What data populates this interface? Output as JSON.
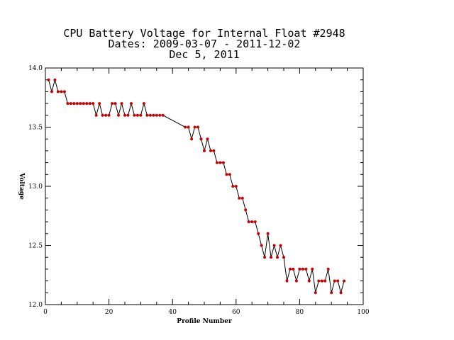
{
  "chart_data": {
    "type": "line",
    "title_lines": [
      "CPU Battery Voltage for Internal Float #2948",
      "Dates:  2009-03-07 -  2011-12-02",
      "Dec  5, 2011"
    ],
    "xlabel": "Profile Number",
    "ylabel": "Voltage",
    "xlim": [
      0,
      100
    ],
    "ylim": [
      12.0,
      14.0
    ],
    "x_ticks": [
      0,
      20,
      40,
      60,
      80,
      100
    ],
    "x_tick_labels": [
      "0",
      "20",
      "40",
      "60",
      "80",
      "100"
    ],
    "y_ticks": [
      12.0,
      12.5,
      13.0,
      13.5,
      14.0
    ],
    "y_tick_labels": [
      "12.0",
      "12.5",
      "13.0",
      "13.5",
      "14.0"
    ],
    "line_color": "#000000",
    "marker_color": "#cc0000",
    "series": [
      {
        "x": [
          1,
          2,
          3,
          4,
          5,
          6,
          7,
          8,
          9,
          10,
          11,
          12,
          13,
          14,
          15,
          16,
          17,
          18,
          19,
          20,
          21,
          22,
          23,
          24,
          25,
          26,
          27,
          28,
          29,
          30,
          31,
          32,
          33,
          34,
          35,
          36,
          37,
          44,
          45,
          46,
          47,
          48,
          49,
          50,
          51,
          52,
          53,
          54,
          55,
          56,
          57,
          58,
          59,
          60,
          61,
          62,
          63,
          64,
          65,
          66,
          67,
          68,
          69,
          70,
          71,
          72,
          73,
          74,
          75,
          76,
          77,
          78,
          79,
          80,
          81,
          82,
          83,
          84,
          85,
          86,
          87,
          88,
          89,
          90,
          91,
          92,
          93,
          94
        ],
        "y": [
          13.9,
          13.8,
          13.9,
          13.8,
          13.8,
          13.8,
          13.7,
          13.7,
          13.7,
          13.7,
          13.7,
          13.7,
          13.7,
          13.7,
          13.7,
          13.6,
          13.7,
          13.6,
          13.6,
          13.6,
          13.7,
          13.7,
          13.6,
          13.7,
          13.6,
          13.6,
          13.7,
          13.6,
          13.6,
          13.6,
          13.7,
          13.6,
          13.6,
          13.6,
          13.6,
          13.6,
          13.6,
          13.5,
          13.5,
          13.4,
          13.5,
          13.5,
          13.4,
          13.3,
          13.4,
          13.3,
          13.3,
          13.2,
          13.2,
          13.2,
          13.1,
          13.1,
          13.0,
          13.0,
          12.9,
          12.9,
          12.8,
          12.7,
          12.7,
          12.7,
          12.6,
          12.5,
          12.4,
          12.6,
          12.4,
          12.5,
          12.4,
          12.5,
          12.4,
          12.2,
          12.3,
          12.3,
          12.2,
          12.3,
          12.3,
          12.3,
          12.2,
          12.3,
          12.1,
          12.2,
          12.2,
          12.2,
          12.3,
          12.1,
          12.2,
          12.2,
          12.1,
          12.2
        ]
      }
    ]
  }
}
